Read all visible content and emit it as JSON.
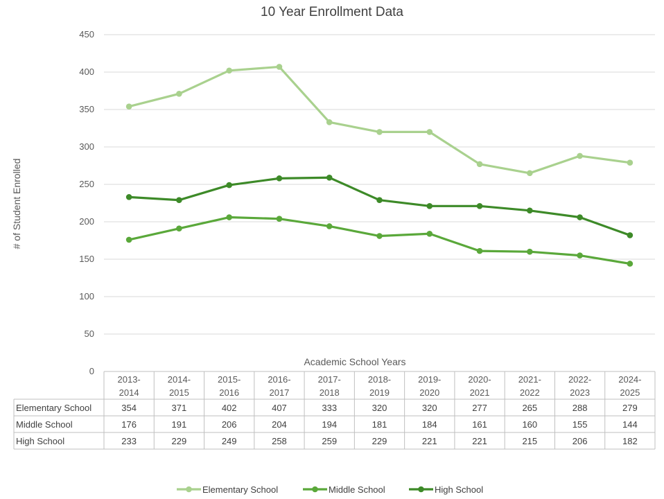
{
  "chart_data": {
    "type": "line",
    "title": "10 Year Enrollment Data",
    "xlabel": "Academic School Years",
    "ylabel": "# of Student Enrolled",
    "ylim": [
      0,
      450
    ],
    "yticks": [
      0,
      50,
      100,
      150,
      200,
      250,
      300,
      350,
      400,
      450
    ],
    "grid": true,
    "legend_position": "bottom",
    "categories": [
      [
        "2013-",
        "2014"
      ],
      [
        "2014-",
        "2015"
      ],
      [
        "2015-",
        "2016"
      ],
      [
        "2016-",
        "2017"
      ],
      [
        "2017-",
        "2018"
      ],
      [
        "2018-",
        "2019"
      ],
      [
        "2019-",
        "2020"
      ],
      [
        "2020-",
        "2021"
      ],
      [
        "2021-",
        "2022"
      ],
      [
        "2022-",
        "2023"
      ],
      [
        "2024-",
        "2025"
      ]
    ],
    "series": [
      {
        "name": "Elementary School",
        "color": "#a9d18e",
        "values": [
          354,
          371,
          402,
          407,
          333,
          320,
          320,
          277,
          265,
          288,
          279
        ]
      },
      {
        "name": "Middle School",
        "color": "#5aa83a",
        "values": [
          176,
          191,
          206,
          204,
          194,
          181,
          184,
          161,
          160,
          155,
          144
        ]
      },
      {
        "name": "High School",
        "color": "#3d8a28",
        "values": [
          233,
          229,
          249,
          258,
          259,
          229,
          221,
          221,
          215,
          206,
          182
        ]
      }
    ]
  }
}
